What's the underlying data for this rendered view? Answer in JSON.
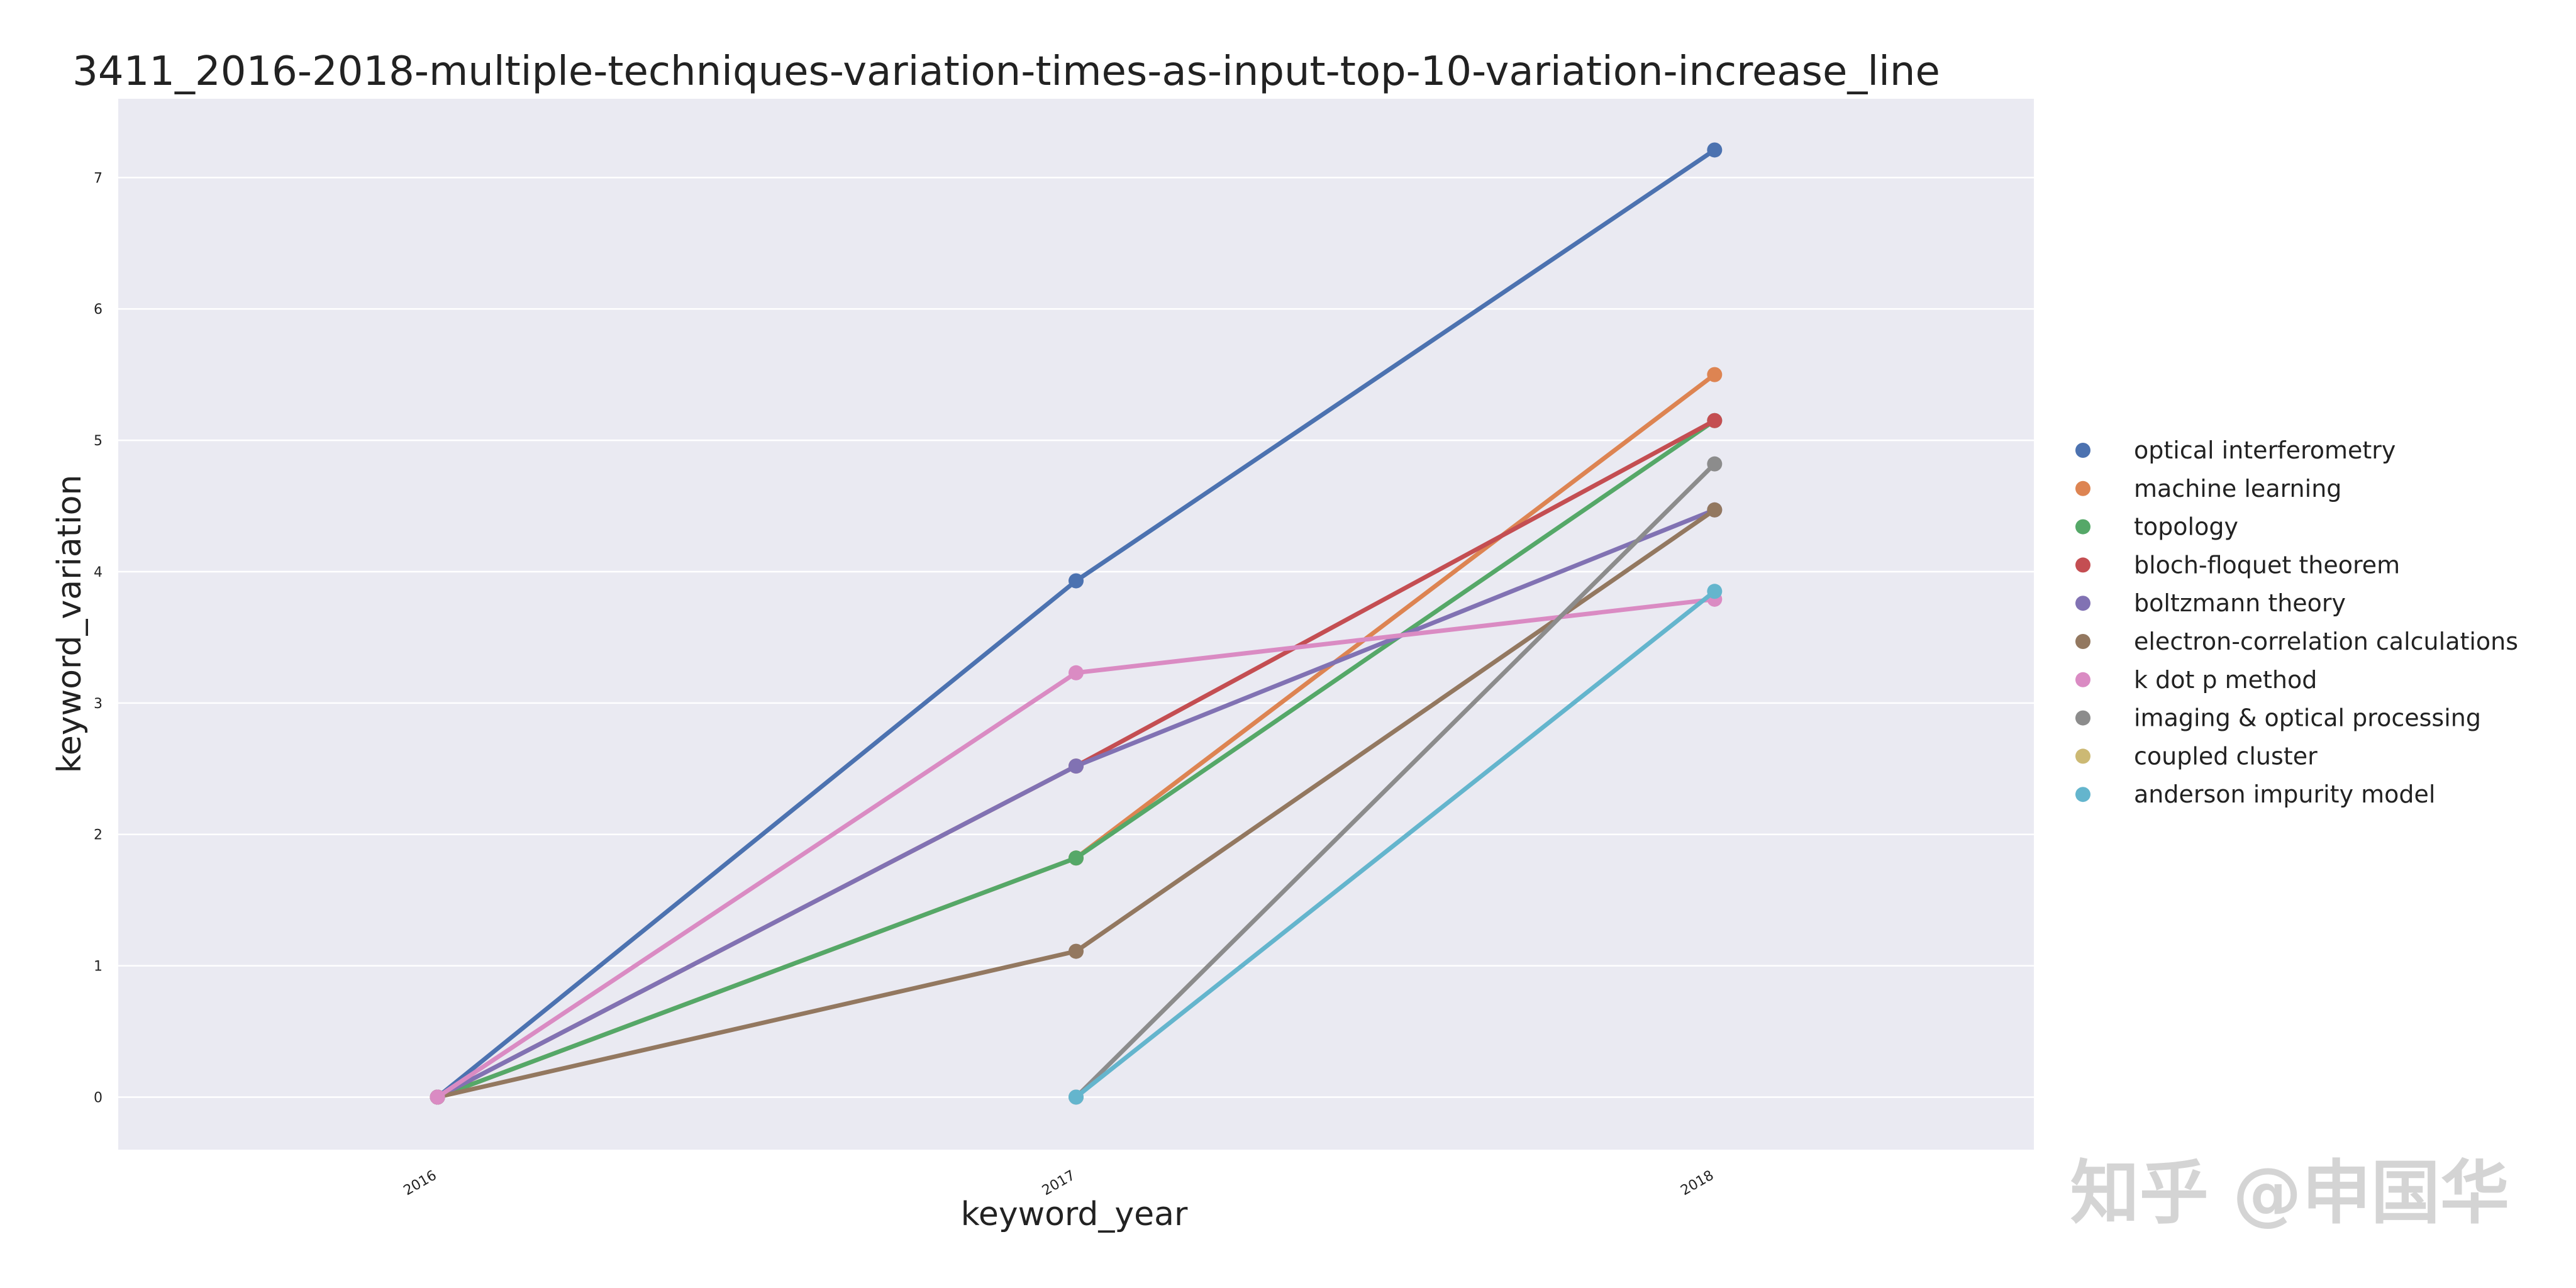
{
  "chart_data": {
    "type": "line",
    "title": "3411_2016-2018-multiple-techniques-variation-times-as-input-top-10-variation-increase_line",
    "xlabel": "keyword_year",
    "ylabel": "keyword_variation",
    "categories": [
      "2016",
      "2017",
      "2018"
    ],
    "yticks": [
      "0",
      "1",
      "2",
      "3",
      "4",
      "5",
      "6",
      "7"
    ],
    "ylim": [
      -0.4,
      7.6
    ],
    "grid": true,
    "legend_position": "right",
    "background": "#eaeaf2",
    "series": [
      {
        "name": "optical interferometry",
        "color": "#4c72b0",
        "values": [
          0,
          3.93,
          7.21
        ]
      },
      {
        "name": "machine learning",
        "color": "#dd8452",
        "values": [
          0,
          1.82,
          5.5
        ]
      },
      {
        "name": "topology",
        "color": "#55a868",
        "values": [
          0,
          1.82,
          5.15
        ]
      },
      {
        "name": "bloch-floquet theorem",
        "color": "#c44e52",
        "values": [
          0,
          2.52,
          5.15
        ]
      },
      {
        "name": "boltzmann theory",
        "color": "#8172b3",
        "values": [
          0,
          2.52,
          4.47
        ]
      },
      {
        "name": "electron-correlation calculations",
        "color": "#937860",
        "values": [
          0,
          1.11,
          4.47
        ]
      },
      {
        "name": "k dot p method",
        "color": "#da8bc3",
        "values": [
          0,
          3.23,
          3.79
        ]
      },
      {
        "name": "imaging & optical processing",
        "color": "#8c8c8c",
        "values": [
          null,
          0,
          4.82
        ]
      },
      {
        "name": "coupled cluster",
        "color": "#ccb974",
        "values": [
          null,
          null,
          null
        ]
      },
      {
        "name": "anderson impurity model",
        "color": "#64b5cd",
        "values": [
          null,
          0,
          3.85
        ]
      }
    ]
  },
  "watermark": "知乎 @申国华"
}
